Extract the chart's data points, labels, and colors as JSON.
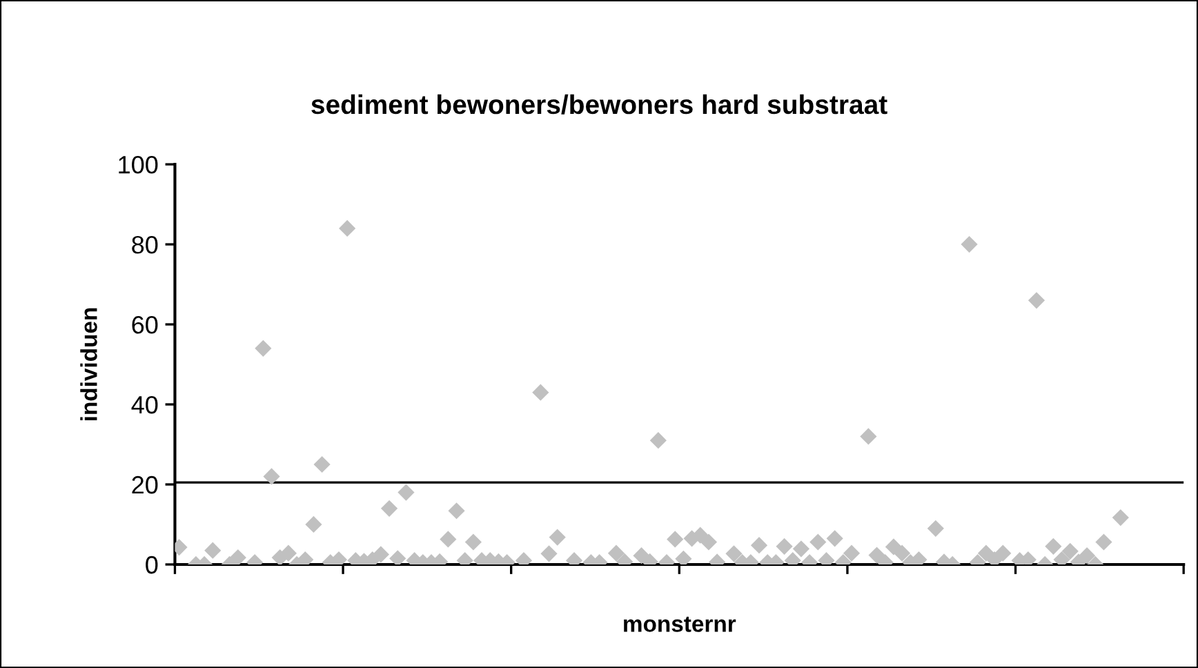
{
  "chart_data": {
    "type": "scatter",
    "title": "sediment bewoners/bewoners hard substraat",
    "xlabel": "monsternr",
    "ylabel": "individuen",
    "categories": [
      null,
      null,
      null,
      null,
      null,
      null,
      null,
      null,
      null,
      null,
      null,
      null,
      null,
      null,
      null,
      null,
      null,
      null,
      null,
      null,
      null,
      null,
      null,
      null,
      null,
      null,
      null,
      null,
      null,
      null,
      null,
      null,
      null,
      null,
      null,
      null,
      null,
      null,
      null,
      null,
      null,
      null,
      null,
      null,
      null,
      null,
      null,
      null,
      null,
      null,
      null,
      null,
      null,
      null,
      null,
      null,
      null,
      null,
      null,
      null,
      null,
      null,
      null,
      null,
      null,
      null,
      null,
      null,
      null,
      null,
      null,
      null,
      null,
      null,
      null,
      null,
      null,
      null,
      null,
      null,
      null,
      null,
      null,
      null,
      null,
      null,
      null,
      null,
      null,
      null,
      null,
      null,
      null,
      null,
      null,
      null,
      null,
      null,
      null,
      null,
      null,
      null,
      null,
      null,
      null,
      null,
      null,
      null,
      null,
      null,
      null,
      null,
      null,
      null,
      null,
      null,
      null,
      null,
      null,
      null
    ],
    "series": [
      {
        "color": "#c0c0c0",
        "values": [
          4.3,
          null,
          0,
          0,
          3.5,
          null,
          0,
          1.7,
          null,
          0.5,
          54,
          22,
          1.7,
          2.8,
          0,
          1.2,
          10,
          25,
          0.5,
          1.2,
          84,
          1,
          0.8,
          1.2,
          2.5,
          14,
          1.5,
          18,
          1,
          0.5,
          0.5,
          0.7,
          6.3,
          13.4,
          1,
          5.6,
          1,
          1,
          0.7,
          0.5,
          null,
          1,
          null,
          43,
          2.7,
          6.8,
          null,
          1,
          null,
          0.5,
          0.5,
          null,
          2.8,
          0.7,
          null,
          2.2,
          0.7,
          31,
          0.5,
          6.3,
          1.4,
          6.5,
          7.3,
          5.6,
          0.6,
          null,
          2.7,
          0.5,
          0.5,
          4.8,
          0.5,
          0.5,
          4.5,
          1,
          3.9,
          0.5,
          5.6,
          1,
          6.5,
          0.5,
          2.8,
          null,
          32,
          2.3,
          0.5,
          4.4,
          2.8,
          0.5,
          1.2,
          null,
          9,
          0.6,
          0,
          null,
          80,
          0.5,
          2.8,
          1.2,
          2.8,
          null,
          1,
          1.2,
          66,
          0,
          4.5,
          1.2,
          3.3,
          0.6,
          2.2,
          0,
          5.6,
          null,
          11.7,
          null,
          null,
          null,
          null,
          null,
          null,
          null
        ]
      }
    ],
    "marker": "diamond",
    "ylim": [
      0,
      100
    ],
    "yticks": [
      0,
      20,
      40,
      60,
      80,
      100
    ],
    "grid": false,
    "ref_lines": [
      {
        "axis": "y",
        "value": 20.5,
        "color": "#000000"
      }
    ]
  }
}
